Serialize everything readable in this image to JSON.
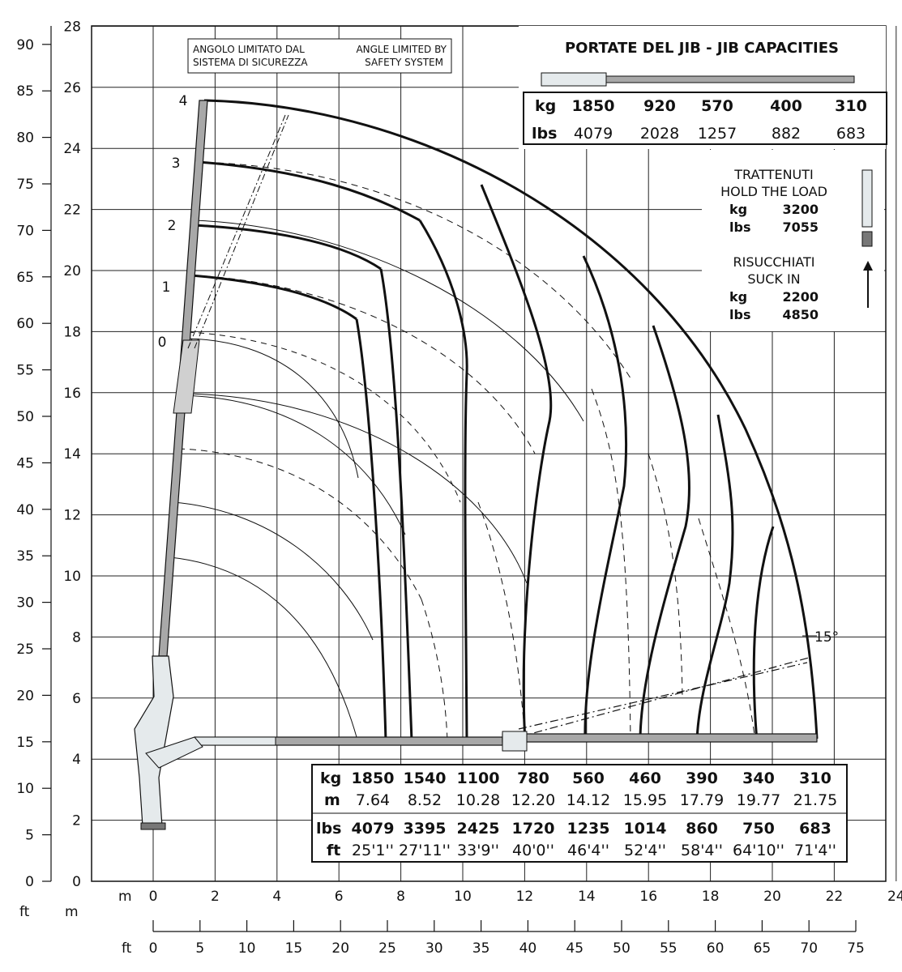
{
  "left_axis": {
    "ft_label": "ft",
    "m_label": "m",
    "ft_ticks": [
      "0",
      "5",
      "10",
      "15",
      "20",
      "25",
      "30",
      "35",
      "40",
      "45",
      "50",
      "55",
      "60",
      "65",
      "70",
      "75",
      "80",
      "85",
      "90"
    ],
    "m_ticks": [
      "0",
      "2",
      "4",
      "6",
      "8",
      "10",
      "12",
      "14",
      "16",
      "18",
      "20",
      "22",
      "24",
      "26",
      "28"
    ]
  },
  "bottom_axis": {
    "m_label": "m",
    "ft_label": "ft",
    "m_ticks": [
      "0",
      "2",
      "4",
      "6",
      "8",
      "10",
      "12",
      "14",
      "16",
      "18",
      "20",
      "22",
      "24"
    ],
    "ft_ticks": [
      "0",
      "5",
      "10",
      "15",
      "20",
      "25",
      "30",
      "35",
      "40",
      "45",
      "50",
      "55",
      "60",
      "65",
      "70",
      "75"
    ]
  },
  "safety_note": {
    "it_line1": "ANGOLO LIMITATO DAL",
    "it_line2": "SISTEMA DI SICUREZZA",
    "en_line1": "ANGLE LIMITED BY",
    "en_line2": "SAFETY SYSTEM"
  },
  "boom_labels": [
    "0",
    "1",
    "2",
    "3",
    "4"
  ],
  "angle_label": "15°",
  "jib_capacities": {
    "title": "PORTATE DEL JIB  -  JIB CAPACITIES",
    "kg_label": "kg",
    "lbs_label": "lbs",
    "kg": [
      "1850",
      "920",
      "570",
      "400",
      "310"
    ],
    "lbs": [
      "4079",
      "2028",
      "1257",
      "882",
      "683"
    ]
  },
  "hold": {
    "it": "TRATTENUTI",
    "en": "HOLD THE LOAD",
    "kg_label": "kg",
    "kg": "3200",
    "lbs_label": "lbs",
    "lbs": "7055"
  },
  "suck": {
    "it": "RISUCCHIATI",
    "en": "SUCK IN",
    "kg_label": "kg",
    "kg": "2200",
    "lbs_label": "lbs",
    "lbs": "4850"
  },
  "capacity_table": {
    "kg_label": "kg",
    "m_label": "m",
    "lbs_label": "lbs",
    "ft_label": "ft",
    "kg": [
      "1850",
      "1540",
      "1100",
      "780",
      "560",
      "460",
      "390",
      "340",
      "310"
    ],
    "m": [
      "7.64",
      "8.52",
      "10.28",
      "12.20",
      "14.12",
      "15.95",
      "17.79",
      "19.77",
      "21.75"
    ],
    "lbs": [
      "4079",
      "3395",
      "2425",
      "1720",
      "1235",
      "1014",
      "860",
      "750",
      "683"
    ],
    "ft": [
      "25'1''",
      "27'11''",
      "33'9''",
      "40'0''",
      "46'4''",
      "52'4''",
      "58'4''",
      "64'10''",
      "71'4''"
    ]
  },
  "colors": {
    "boom": "#a8a8a8",
    "line": "#111111",
    "grid": "#222222"
  }
}
